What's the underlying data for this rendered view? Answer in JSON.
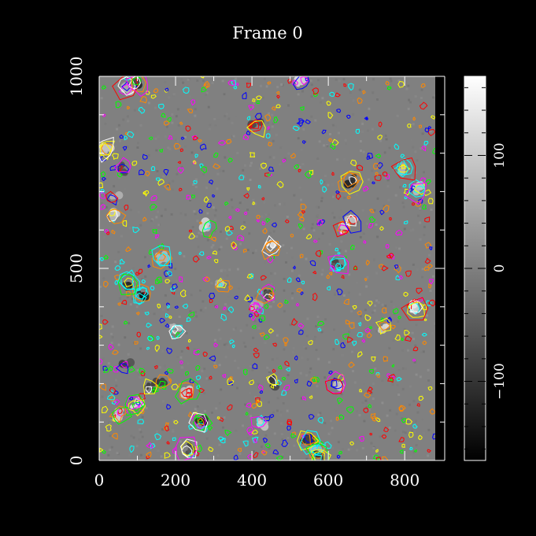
{
  "chart_data": {
    "type": "heatmap",
    "title": "Frame 0",
    "xlabel": "",
    "ylabel": "",
    "xlim": [
      0,
      880
    ],
    "ylim": [
      0,
      1000
    ],
    "x_ticks": [
      0,
      200,
      400,
      600,
      800
    ],
    "x_tick_labels": [
      "0",
      "200",
      "400",
      "600",
      "800"
    ],
    "y_ticks": [
      0,
      500,
      1000
    ],
    "y_tick_labels": [
      "0",
      "500",
      "1000"
    ],
    "colorbar": {
      "range": [
        -170,
        170
      ],
      "ticks": [
        -100,
        0,
        100
      ],
      "tick_labels": [
        "−100",
        "0",
        "100"
      ],
      "colormap": "grayscale",
      "low_color": "#000000",
      "high_color": "#ffffff"
    },
    "background_value": 0,
    "overlay": "feature contours",
    "contour_colors": [
      "#ff00ff",
      "#00ffff",
      "#00ff00",
      "#ffff00",
      "#0000ff",
      "#ff0000",
      "#ff8800",
      "#ffffff"
    ],
    "bright_regions": [
      {
        "x": 530,
        "y": 990,
        "v": 140
      },
      {
        "x": 285,
        "y": 610,
        "v": 120
      },
      {
        "x": 450,
        "y": 555,
        "v": 150
      },
      {
        "x": 640,
        "y": 605,
        "v": 130
      },
      {
        "x": 660,
        "y": 625,
        "v": 120
      },
      {
        "x": 20,
        "y": 810,
        "v": 110
      },
      {
        "x": 40,
        "y": 640,
        "v": 100
      },
      {
        "x": 830,
        "y": 395,
        "v": 140
      },
      {
        "x": 745,
        "y": 345,
        "v": 120
      },
      {
        "x": 620,
        "y": 195,
        "v": 110
      },
      {
        "x": 230,
        "y": 175,
        "v": 100
      },
      {
        "x": 425,
        "y": 100,
        "v": 120
      },
      {
        "x": 95,
        "y": 145,
        "v": 130
      },
      {
        "x": 55,
        "y": 120,
        "v": 110
      },
      {
        "x": 570,
        "y": 25,
        "v": 90
      },
      {
        "x": 835,
        "y": 705,
        "v": 90
      },
      {
        "x": 800,
        "y": 760,
        "v": 80
      },
      {
        "x": 165,
        "y": 530,
        "v": 90
      },
      {
        "x": 320,
        "y": 455,
        "v": 80
      },
      {
        "x": 200,
        "y": 340,
        "v": 90
      },
      {
        "x": 410,
        "y": 400,
        "v": 80
      },
      {
        "x": 40,
        "y": 680,
        "v": 90
      },
      {
        "x": 70,
        "y": 970,
        "v": 80
      }
    ],
    "dark_regions": [
      {
        "x": 100,
        "y": 985,
        "v": -120
      },
      {
        "x": 110,
        "y": 430,
        "v": -150
      },
      {
        "x": 75,
        "y": 460,
        "v": -120
      },
      {
        "x": 265,
        "y": 100,
        "v": -140
      },
      {
        "x": 450,
        "y": 205,
        "v": -110
      },
      {
        "x": 660,
        "y": 730,
        "v": -120
      },
      {
        "x": 545,
        "y": 55,
        "v": -100
      },
      {
        "x": 135,
        "y": 190,
        "v": -100
      },
      {
        "x": 160,
        "y": 200,
        "v": -90
      },
      {
        "x": 70,
        "y": 245,
        "v": -90
      },
      {
        "x": 410,
        "y": 870,
        "v": -80
      },
      {
        "x": 440,
        "y": 430,
        "v": -90
      },
      {
        "x": 235,
        "y": 30,
        "v": -80
      },
      {
        "x": 60,
        "y": 760,
        "v": -80
      },
      {
        "x": 575,
        "y": 10,
        "v": -90
      },
      {
        "x": 625,
        "y": 510,
        "v": -80
      }
    ]
  }
}
